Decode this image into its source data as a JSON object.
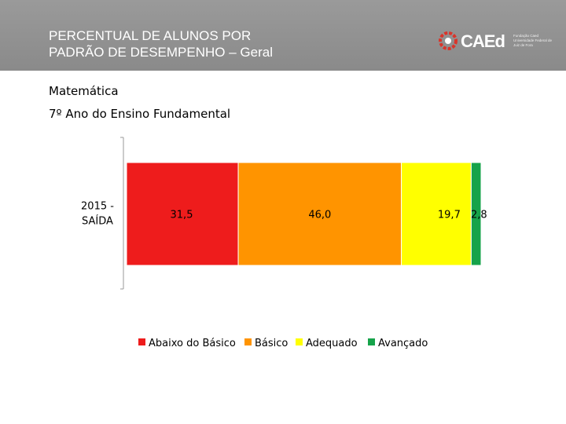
{
  "header": {
    "title_line1": "PERCENTUAL DE ALUNOS POR",
    "title_line2": "PADRÃO DE DESEMPENHO – Geral",
    "logo_text": "CAEd",
    "logo_sub": "Fundação Caed Universidade Federal de Juiz de Fora"
  },
  "subject": "Matemática",
  "grade": "7º Ano do Ensino Fundamental",
  "colors": {
    "header_bg": "#8f8f8f",
    "abaixo": "#ee1c1c",
    "basico": "#ff9400",
    "adequado": "#ffff00",
    "avancado": "#16a34a"
  },
  "chart_data": {
    "type": "bar",
    "orientation": "horizontal-stacked",
    "categories": [
      "2015 - SAÍDA"
    ],
    "category_lines": [
      [
        "2015 -",
        "SAÍDA"
      ]
    ],
    "series": [
      {
        "name": "Abaixo do Básico",
        "values": [
          31.5
        ],
        "label": "31,5",
        "color": "#ee1c1c"
      },
      {
        "name": "Básico",
        "values": [
          46.0
        ],
        "label": "46,0",
        "color": "#ff9400"
      },
      {
        "name": "Adequado",
        "values": [
          19.7
        ],
        "label": "19,7",
        "color": "#ffff00"
      },
      {
        "name": "Avançado",
        "values": [
          2.8
        ],
        "label": "2,8",
        "color": "#16a34a"
      }
    ],
    "xlim": [
      0,
      100
    ],
    "grid": false,
    "legend_position": "bottom"
  }
}
